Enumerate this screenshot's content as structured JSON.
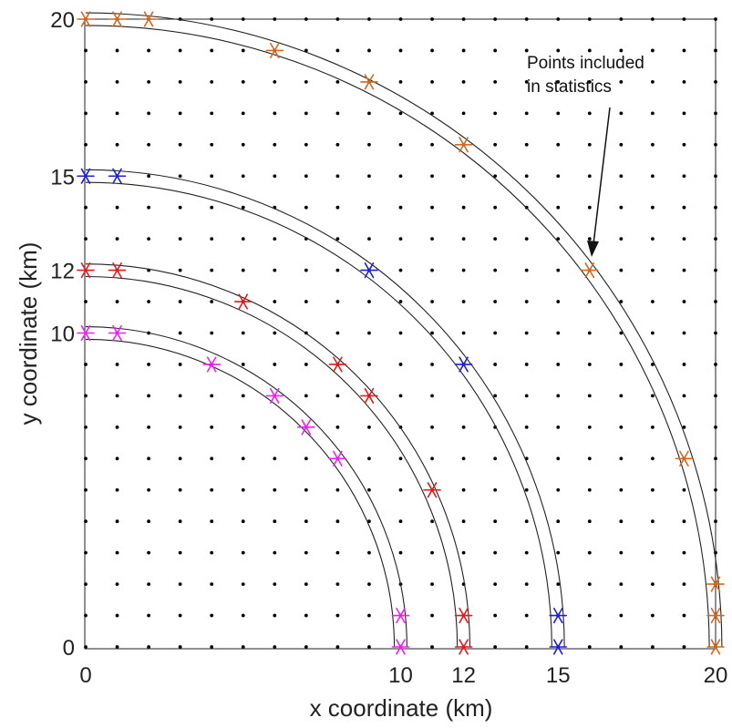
{
  "chart_data": {
    "type": "scatter",
    "xlabel": "x coordinate (km)",
    "ylabel": "y coordinate (km)",
    "xlim": [
      0,
      20
    ],
    "ylim": [
      0,
      20
    ],
    "xticks": [
      0,
      10,
      12,
      15,
      20
    ],
    "yticks": [
      0,
      10,
      12,
      15,
      20
    ],
    "grid_points": {
      "x_start": 0,
      "x_end": 20,
      "y_start": 0,
      "y_end": 20,
      "spacing": 1
    },
    "rings": [
      {
        "radius": 10,
        "inner_radius": 9.8,
        "outer_radius": 10.2
      },
      {
        "radius": 12,
        "inner_radius": 11.8,
        "outer_radius": 12.2
      },
      {
        "radius": 15,
        "inner_radius": 14.8,
        "outer_radius": 15.2
      },
      {
        "radius": 20,
        "inner_radius": 19.8,
        "outer_radius": 20.2
      }
    ],
    "series": [
      {
        "color": "#ee22ee",
        "marker": "asterisk",
        "points": [
          [
            0,
            10
          ],
          [
            1,
            10
          ],
          [
            4,
            9
          ],
          [
            6,
            8
          ],
          [
            7,
            7
          ],
          [
            8,
            6
          ],
          [
            10,
            1
          ],
          [
            10,
            0
          ]
        ]
      },
      {
        "color": "#e31a1c",
        "marker": "asterisk",
        "points": [
          [
            0,
            12
          ],
          [
            1,
            12
          ],
          [
            5,
            11
          ],
          [
            8,
            9
          ],
          [
            9,
            8
          ],
          [
            11,
            5
          ],
          [
            12,
            1
          ],
          [
            12,
            0
          ]
        ]
      },
      {
        "color": "#1f1fd6",
        "marker": "asterisk",
        "points": [
          [
            0,
            15
          ],
          [
            1,
            15
          ],
          [
            9,
            12
          ],
          [
            12,
            9
          ],
          [
            15,
            1
          ],
          [
            15,
            0
          ]
        ]
      },
      {
        "color": "#d2691e",
        "marker": "asterisk",
        "points": [
          [
            0,
            20
          ],
          [
            1,
            20
          ],
          [
            2,
            20
          ],
          [
            6,
            19
          ],
          [
            9,
            18
          ],
          [
            12,
            16
          ],
          [
            16,
            12
          ],
          [
            19,
            6
          ],
          [
            20,
            2
          ],
          [
            20,
            1
          ],
          [
            20,
            0
          ]
        ]
      }
    ],
    "annotation": {
      "lines": [
        "Points included",
        "in statistics"
      ],
      "arrow_target": [
        16,
        12.7
      ]
    }
  }
}
